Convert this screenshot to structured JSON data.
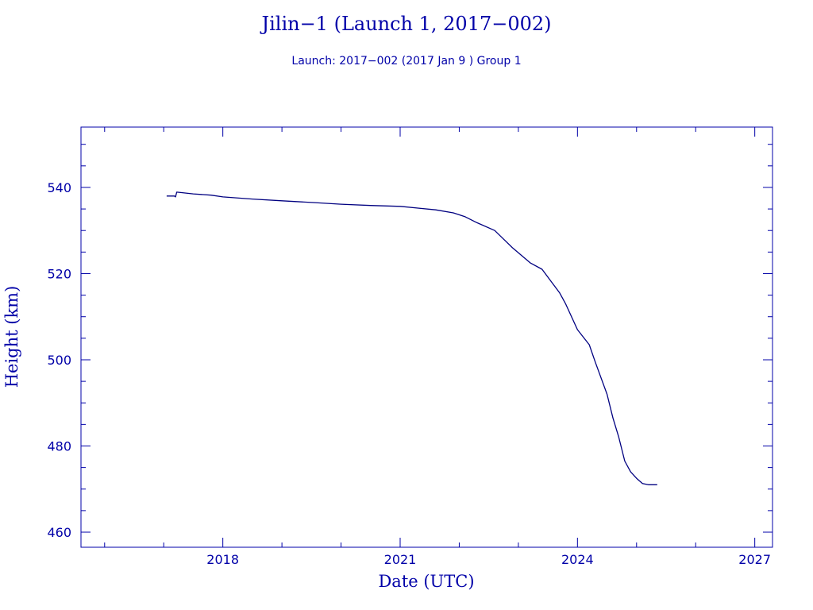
{
  "chart_data": {
    "type": "line",
    "title": "Jilin−1 (Launch 1, 2017−002)",
    "subtitle": "Launch: 2017−002  (2017 Jan  9 )  Group 1",
    "xlabel": "Date (UTC)",
    "ylabel": "Height (km)",
    "xlim": [
      2015.6,
      2027.3
    ],
    "ylim": [
      456.5,
      554.0
    ],
    "x_ticks": [
      2018,
      2021,
      2024,
      2027
    ],
    "y_ticks": [
      460,
      480,
      500,
      520,
      540
    ],
    "grid": false,
    "series": [
      {
        "color": "#000080",
        "x": [
          2017.05,
          2017.18,
          2017.2,
          2017.22,
          2017.3,
          2017.5,
          2017.8,
          2018.0,
          2018.5,
          2019.0,
          2019.5,
          2020.0,
          2020.5,
          2021.0,
          2021.3,
          2021.6,
          2021.9,
          2022.1,
          2022.3,
          2022.6,
          2022.9,
          2023.2,
          2023.4,
          2023.7,
          2023.8,
          2024.0,
          2024.2,
          2024.3,
          2024.5,
          2024.6,
          2024.7,
          2024.8,
          2024.9,
          2025.0,
          2025.1,
          2025.2,
          2025.3,
          2025.35
        ],
        "y": [
          538.0,
          538.0,
          537.8,
          538.9,
          538.8,
          538.5,
          538.2,
          537.8,
          537.3,
          536.9,
          536.5,
          536.1,
          535.8,
          535.6,
          535.2,
          534.8,
          534.1,
          533.2,
          531.8,
          530.0,
          526.0,
          522.5,
          521.0,
          515.5,
          513.0,
          507.0,
          503.5,
          499.5,
          492.0,
          486.5,
          482.0,
          476.5,
          474.0,
          472.5,
          471.3,
          471.0,
          471.0,
          471.0
        ]
      }
    ]
  }
}
